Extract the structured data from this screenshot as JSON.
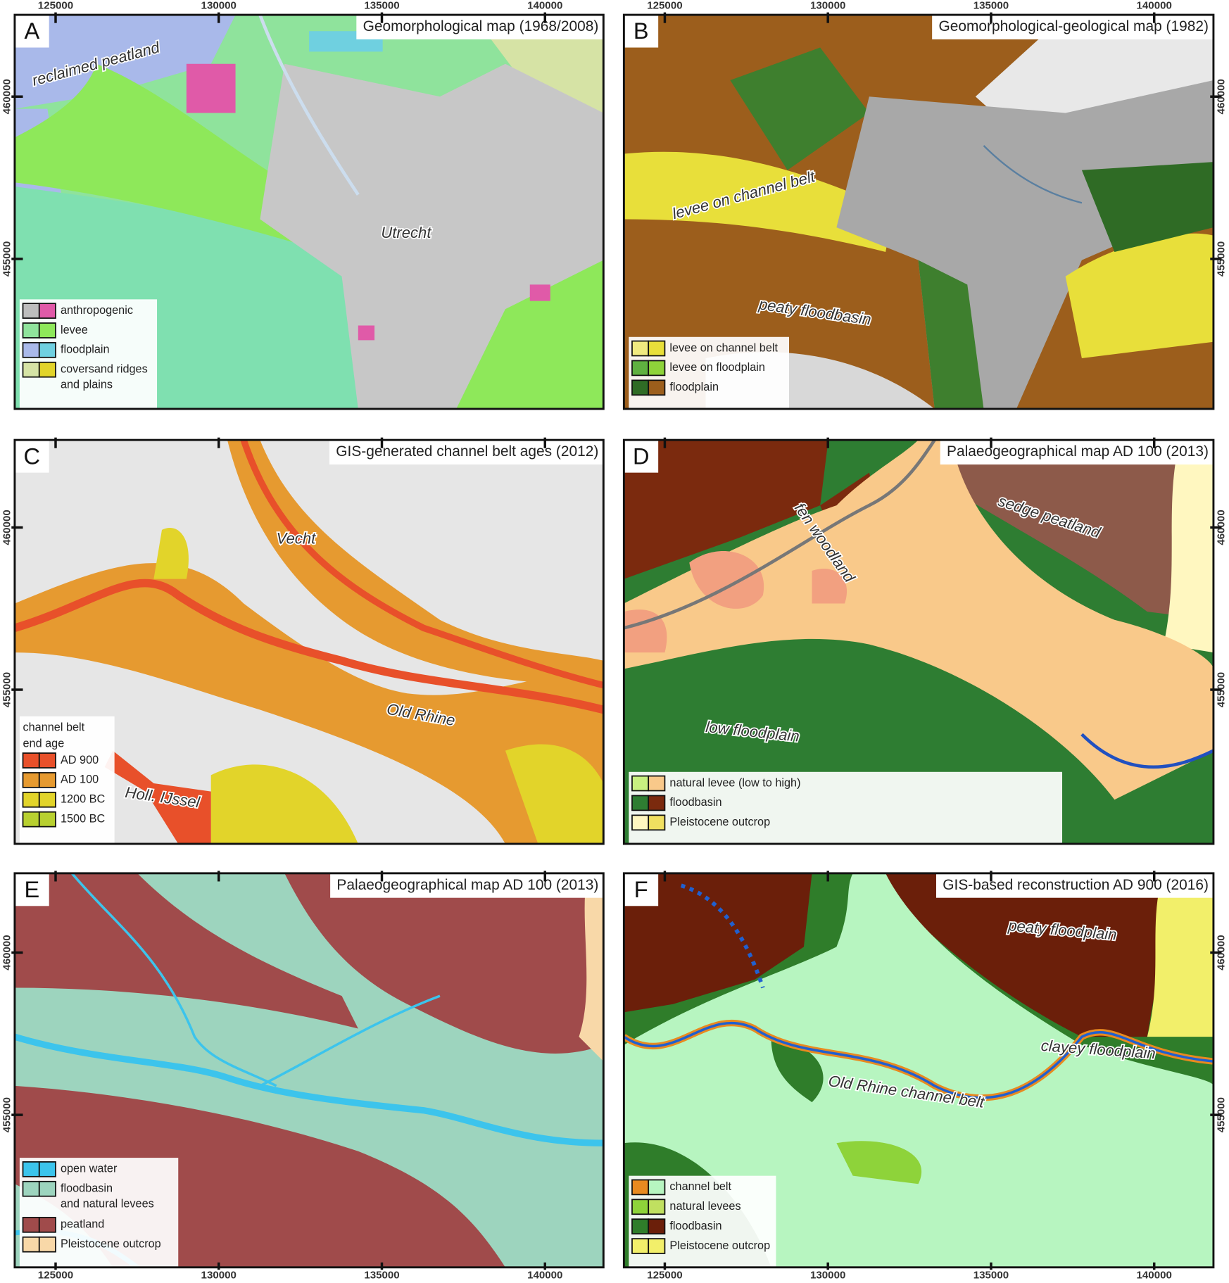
{
  "axes": {
    "x_ticks": [
      125000,
      130000,
      135000,
      140000
    ],
    "y_ticks": [
      460000,
      455000
    ]
  },
  "panels": [
    {
      "letter": "A",
      "title": "Geomorphological map (1968/2008)",
      "labels": [
        "reclaimed peatland",
        "Utrecht"
      ],
      "legend": [
        [
          "anthropogenic"
        ],
        [
          "levee"
        ],
        [
          "floodplain"
        ],
        [
          "coversand ridges",
          "and plains"
        ]
      ]
    },
    {
      "letter": "B",
      "title": "Geomorphological-geological map (1982)",
      "labels": [
        "levee on channel belt",
        "peaty floodbasin"
      ],
      "legend": [
        [
          "levee on channel belt"
        ],
        [
          "levee on floodplain"
        ],
        [
          "floodplain"
        ]
      ]
    },
    {
      "letter": "C",
      "title": "GIS-generated channel belt ages (2012)",
      "labels": [
        "Vecht",
        "Old Rhine",
        "Holl. IJssel"
      ],
      "legend_title": [
        "channel belt",
        "end age"
      ],
      "legend": [
        [
          "AD 900"
        ],
        [
          "AD 100"
        ],
        [
          "1200 BC"
        ],
        [
          "1500 BC"
        ]
      ]
    },
    {
      "letter": "D",
      "title": "Palaeogeographical map AD 100 (2013)",
      "labels": [
        "fen woodland",
        "sedge peatland",
        "low floodplain"
      ],
      "legend": [
        [
          "natural levee (low to high)"
        ],
        [
          "floodbasin"
        ],
        [
          "Pleistocene outcrop"
        ]
      ]
    },
    {
      "letter": "E",
      "title": "Palaeogeographical map AD 100 (2013)",
      "labels": [],
      "legend": [
        [
          "open water"
        ],
        [
          "floodbasin",
          "and natural levees"
        ],
        [
          "peatland"
        ],
        [
          "Pleistocene outcrop"
        ]
      ]
    },
    {
      "letter": "F",
      "title": "GIS-based reconstruction AD 900 (2016)",
      "labels": [
        "peaty floodplain",
        "clayey floodplain",
        "Old Rhine channel belt"
      ],
      "legend": [
        [
          "channel belt"
        ],
        [
          "natural levees"
        ],
        [
          "floodbasin"
        ],
        [
          "Pleistocene outcrop"
        ]
      ]
    }
  ]
}
